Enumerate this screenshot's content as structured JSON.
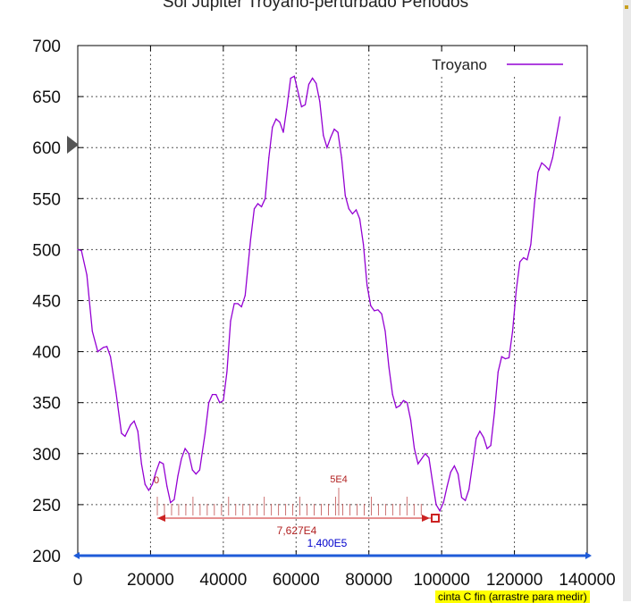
{
  "chart_data": {
    "type": "line",
    "title": "Sol Jupiter Troyano-perturbado Periodos",
    "xlim": [
      0,
      140000
    ],
    "ylim": [
      200,
      700
    ],
    "x_ticks": [
      "0",
      "20000",
      "40000",
      "60000",
      "80000",
      "100000",
      "120000",
      "140000"
    ],
    "y_ticks": [
      "200",
      "250",
      "300",
      "350",
      "400",
      "450",
      "500",
      "550",
      "600",
      "650",
      "700"
    ],
    "grid": true,
    "legend_position": "top-right",
    "series": [
      {
        "name": "Troyano",
        "color": "#9400d3",
        "points": [
          [
            0,
            500
          ],
          [
            1000,
            499
          ],
          [
            2500,
            475
          ],
          [
            4000,
            420
          ],
          [
            5500,
            400
          ],
          [
            7000,
            404
          ],
          [
            8000,
            405
          ],
          [
            9000,
            395
          ],
          [
            10500,
            360
          ],
          [
            12000,
            320
          ],
          [
            13000,
            317
          ],
          [
            14500,
            328
          ],
          [
            15500,
            332
          ],
          [
            16500,
            322
          ],
          [
            17500,
            290
          ],
          [
            18500,
            270
          ],
          [
            19500,
            264
          ],
          [
            20500,
            270
          ],
          [
            21500,
            282
          ],
          [
            22500,
            292
          ],
          [
            23500,
            290
          ],
          [
            24500,
            268
          ],
          [
            25500,
            252
          ],
          [
            26500,
            255
          ],
          [
            27500,
            278
          ],
          [
            28500,
            295
          ],
          [
            29500,
            305
          ],
          [
            30500,
            300
          ],
          [
            31500,
            284
          ],
          [
            32500,
            280
          ],
          [
            33500,
            284
          ],
          [
            35000,
            320
          ],
          [
            36000,
            350
          ],
          [
            37000,
            358
          ],
          [
            38000,
            358
          ],
          [
            39000,
            350
          ],
          [
            40000,
            352
          ],
          [
            41000,
            380
          ],
          [
            42000,
            430
          ],
          [
            43000,
            447
          ],
          [
            44000,
            447
          ],
          [
            45000,
            444
          ],
          [
            46000,
            455
          ],
          [
            47500,
            510
          ],
          [
            48500,
            540
          ],
          [
            49500,
            545
          ],
          [
            50500,
            542
          ],
          [
            51500,
            550
          ],
          [
            52500,
            590
          ],
          [
            53500,
            620
          ],
          [
            54500,
            628
          ],
          [
            55500,
            625
          ],
          [
            56500,
            615
          ],
          [
            57500,
            640
          ],
          [
            58500,
            668
          ],
          [
            59500,
            670
          ],
          [
            60500,
            655
          ],
          [
            61500,
            640
          ],
          [
            62500,
            642
          ],
          [
            63500,
            662
          ],
          [
            64500,
            668
          ],
          [
            65500,
            663
          ],
          [
            66500,
            645
          ],
          [
            67500,
            612
          ],
          [
            68500,
            600
          ],
          [
            69500,
            610
          ],
          [
            70500,
            618
          ],
          [
            71500,
            615
          ],
          [
            72500,
            590
          ],
          [
            73500,
            553
          ],
          [
            74500,
            540
          ],
          [
            75500,
            535
          ],
          [
            76500,
            539
          ],
          [
            77500,
            530
          ],
          [
            78500,
            505
          ],
          [
            79500,
            465
          ],
          [
            80500,
            445
          ],
          [
            81500,
            440
          ],
          [
            82500,
            441
          ],
          [
            83500,
            437
          ],
          [
            84500,
            420
          ],
          [
            85500,
            385
          ],
          [
            86500,
            358
          ],
          [
            87500,
            345
          ],
          [
            88500,
            347
          ],
          [
            89500,
            352
          ],
          [
            90500,
            350
          ],
          [
            91500,
            333
          ],
          [
            92500,
            305
          ],
          [
            93500,
            290
          ],
          [
            94500,
            295
          ],
          [
            95500,
            300
          ],
          [
            96500,
            296
          ],
          [
            97500,
            272
          ],
          [
            98500,
            250
          ],
          [
            99500,
            244
          ],
          [
            100500,
            252
          ],
          [
            101500,
            268
          ],
          [
            102500,
            282
          ],
          [
            103500,
            288
          ],
          [
            104500,
            280
          ],
          [
            105500,
            257
          ],
          [
            106500,
            254
          ],
          [
            107500,
            265
          ],
          [
            108500,
            290
          ],
          [
            109500,
            315
          ],
          [
            110500,
            322
          ],
          [
            111500,
            316
          ],
          [
            112500,
            305
          ],
          [
            113500,
            308
          ],
          [
            114500,
            340
          ],
          [
            115500,
            380
          ],
          [
            116500,
            395
          ],
          [
            117500,
            393
          ],
          [
            118500,
            394
          ],
          [
            119500,
            420
          ],
          [
            120500,
            460
          ],
          [
            121500,
            488
          ],
          [
            122500,
            492
          ],
          [
            123500,
            490
          ],
          [
            124500,
            505
          ],
          [
            125500,
            545
          ],
          [
            126500,
            576
          ],
          [
            127500,
            585
          ],
          [
            128500,
            582
          ],
          [
            129500,
            578
          ],
          [
            130500,
            590
          ],
          [
            131500,
            610
          ],
          [
            132500,
            630
          ]
        ]
      }
    ],
    "annotations": [
      {
        "text": "0",
        "color": "#b22222"
      },
      {
        "text": "5E4",
        "color": "#b22222"
      },
      {
        "text": "7,627E4",
        "color": "#b22222"
      },
      {
        "text": "1,400E5",
        "color": "#0000cc"
      }
    ]
  },
  "overlay": {
    "tape_label": "cinta C fin (arrastre para medir)"
  }
}
